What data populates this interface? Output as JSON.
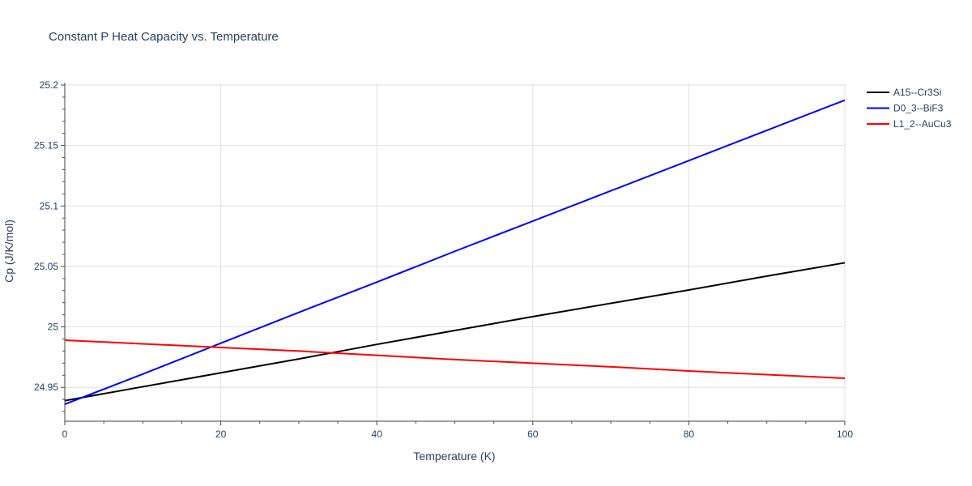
{
  "chart_data": {
    "type": "line",
    "title": "Constant P Heat Capacity vs. Temperature",
    "xlabel": "Temperature (K)",
    "ylabel": "Cp (J/K/mol)",
    "xlim": [
      0,
      100
    ],
    "ylim": [
      24.922,
      25.202
    ],
    "x_ticks": [
      0,
      20,
      40,
      60,
      80,
      100
    ],
    "x_tick_labels": [
      "0",
      "20",
      "40",
      "60",
      "80",
      "100"
    ],
    "y_ticks": [
      24.95,
      25.0,
      25.05,
      25.1,
      25.15,
      25.2
    ],
    "y_tick_labels": [
      "24.95",
      "25",
      "25.05",
      "25.1",
      "25.15",
      "25.2"
    ],
    "grid": true,
    "legend_position": "top-right",
    "x": [
      0,
      10,
      20,
      30,
      40,
      50,
      60,
      70,
      80,
      90,
      100
    ],
    "series": [
      {
        "name": "A15--Cr3Si",
        "color": "#000000",
        "values": [
          24.939,
          24.9505,
          24.962,
          24.9735,
          24.9855,
          24.997,
          25.0085,
          25.0195,
          25.0305,
          25.042,
          25.053
        ]
      },
      {
        "name": "D0_3--BiF3",
        "color": "#0000ff",
        "values": [
          24.936,
          24.961,
          24.9865,
          25.012,
          25.037,
          25.0625,
          25.0875,
          25.1125,
          25.1375,
          25.1625,
          25.1875
        ]
      },
      {
        "name": "L1_2--AuCu3",
        "color": "#ff0000",
        "values": [
          24.989,
          24.986,
          24.983,
          24.98,
          24.9765,
          24.973,
          24.97,
          24.967,
          24.9635,
          24.9605,
          24.9575
        ]
      }
    ]
  }
}
